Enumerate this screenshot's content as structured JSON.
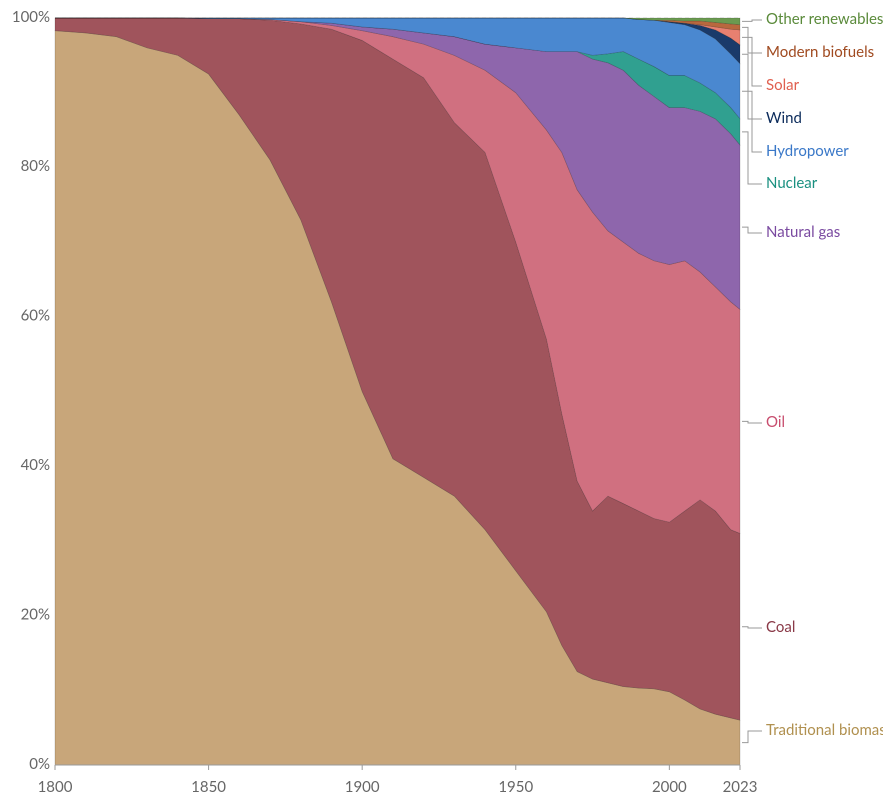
{
  "chart_data": {
    "type": "stacked_area",
    "x": [
      1800,
      1810,
      1820,
      1830,
      1840,
      1850,
      1860,
      1870,
      1880,
      1890,
      1900,
      1910,
      1920,
      1930,
      1940,
      1950,
      1960,
      1965,
      1970,
      1975,
      1980,
      1985,
      1990,
      1995,
      2000,
      2005,
      2010,
      2015,
      2020,
      2023
    ],
    "xlim": [
      1800,
      2023
    ],
    "xticks": [
      1800,
      1850,
      1900,
      1950,
      2000,
      2023
    ],
    "ylim": [
      0,
      100
    ],
    "yticks": [
      {
        "value": 0,
        "label": "0%"
      },
      {
        "value": 20,
        "label": "20%"
      },
      {
        "value": 40,
        "label": "40%"
      },
      {
        "value": 60,
        "label": "60%"
      },
      {
        "value": 80,
        "label": "80%"
      },
      {
        "value": 100,
        "label": "100%"
      }
    ],
    "grid": true,
    "series": [
      {
        "name": "Traditional biomass",
        "color": "#c8a67a",
        "label_color": "#b0904f",
        "values": [
          98.3,
          98,
          97.5,
          96,
          95,
          92.5,
          87,
          81,
          73,
          62,
          50,
          41,
          38.5,
          36,
          31.5,
          26,
          20.5,
          16,
          12.5,
          11.5,
          11,
          10.5,
          10.3,
          10.2,
          9.8,
          8.7,
          7.5,
          6.8,
          6.3,
          6.0
        ]
      },
      {
        "name": "Coal",
        "color": "#a0545c",
        "label_color": "#8a3a48",
        "values": [
          1.7,
          2,
          2.5,
          4,
          5,
          7.4,
          12.9,
          18.7,
          26.2,
          36.5,
          47,
          53.5,
          53.5,
          50,
          50.5,
          44,
          36.5,
          31,
          25.5,
          22.5,
          25,
          24.5,
          23.7,
          22.8,
          22.7,
          25.3,
          28,
          27.2,
          25.2,
          25
        ]
      },
      {
        "name": "Oil",
        "color": "#d07080",
        "label_color": "#c84d6e",
        "values": [
          0,
          0,
          0,
          0,
          0,
          0,
          0,
          0.1,
          0.3,
          0.5,
          1.3,
          3,
          4.5,
          9,
          11,
          20,
          28,
          35,
          39,
          40,
          35.5,
          35,
          34.5,
          34.5,
          34.5,
          33.5,
          30.5,
          30,
          30.5,
          30
        ]
      },
      {
        "name": "Natural gas",
        "color": "#8e66ac",
        "label_color": "#7a4aa0",
        "values": [
          0,
          0,
          0,
          0,
          0,
          0,
          0,
          0,
          0,
          0.3,
          0.5,
          1,
          1.5,
          2.5,
          3.5,
          6,
          10.5,
          13.5,
          18.5,
          20.5,
          22.5,
          23,
          22.5,
          22,
          21,
          20.5,
          21.5,
          22.5,
          22.5,
          22
        ]
      },
      {
        "name": "Nuclear",
        "color": "#30a090",
        "label_color": "#1a9080",
        "values": [
          0,
          0,
          0,
          0,
          0,
          0,
          0,
          0,
          0,
          0,
          0,
          0,
          0,
          0,
          0,
          0,
          0,
          0,
          0,
          0.5,
          1.2,
          2.5,
          3.5,
          4,
          4.3,
          4.3,
          3.8,
          3.5,
          3.5,
          3.5
        ]
      },
      {
        "name": "Hydropower",
        "color": "#4a88d0",
        "label_color": "#3a78c8",
        "values": [
          0,
          0,
          0,
          0,
          0,
          0.1,
          0.1,
          0.2,
          0.5,
          0.7,
          1.2,
          1.5,
          2,
          2.5,
          3.5,
          4,
          4.5,
          4.5,
          4.5,
          5,
          4.8,
          4.5,
          5.3,
          6.2,
          7.1,
          6.8,
          7.1,
          7.2,
          7.2,
          7.4
        ]
      },
      {
        "name": "Wind",
        "color": "#1a3a6a",
        "label_color": "#0a2a5a",
        "values": [
          0,
          0,
          0,
          0,
          0,
          0,
          0,
          0,
          0,
          0,
          0,
          0,
          0,
          0,
          0,
          0,
          0,
          0,
          0,
          0,
          0,
          0,
          0,
          0,
          0.1,
          0.2,
          0.6,
          1.2,
          2.1,
          2.5
        ]
      },
      {
        "name": "Solar",
        "color": "#e88070",
        "label_color": "#e06050",
        "values": [
          0,
          0,
          0,
          0,
          0,
          0,
          0,
          0,
          0,
          0,
          0,
          0,
          0,
          0,
          0,
          0,
          0,
          0,
          0,
          0,
          0,
          0,
          0,
          0,
          0,
          0,
          0.1,
          0.4,
          1.2,
          2
        ]
      },
      {
        "name": "Modern biofuels",
        "color": "#b8683e",
        "label_color": "#a04a20",
        "values": [
          0,
          0,
          0,
          0,
          0,
          0,
          0,
          0,
          0,
          0,
          0,
          0,
          0,
          0,
          0,
          0,
          0,
          0,
          0,
          0,
          0,
          0,
          0,
          0,
          0.2,
          0.3,
          0.5,
          0.6,
          0.7,
          0.7
        ]
      },
      {
        "name": "Other renewables",
        "color": "#6a9a50",
        "label_color": "#5a8a3a",
        "values": [
          0,
          0,
          0,
          0,
          0,
          0,
          0,
          0,
          0,
          0,
          0,
          0,
          0,
          0,
          0,
          0,
          0,
          0,
          0,
          0,
          0,
          0,
          0.2,
          0.3,
          0.3,
          0.4,
          0.4,
          0.6,
          0.8,
          0.9
        ]
      }
    ]
  }
}
